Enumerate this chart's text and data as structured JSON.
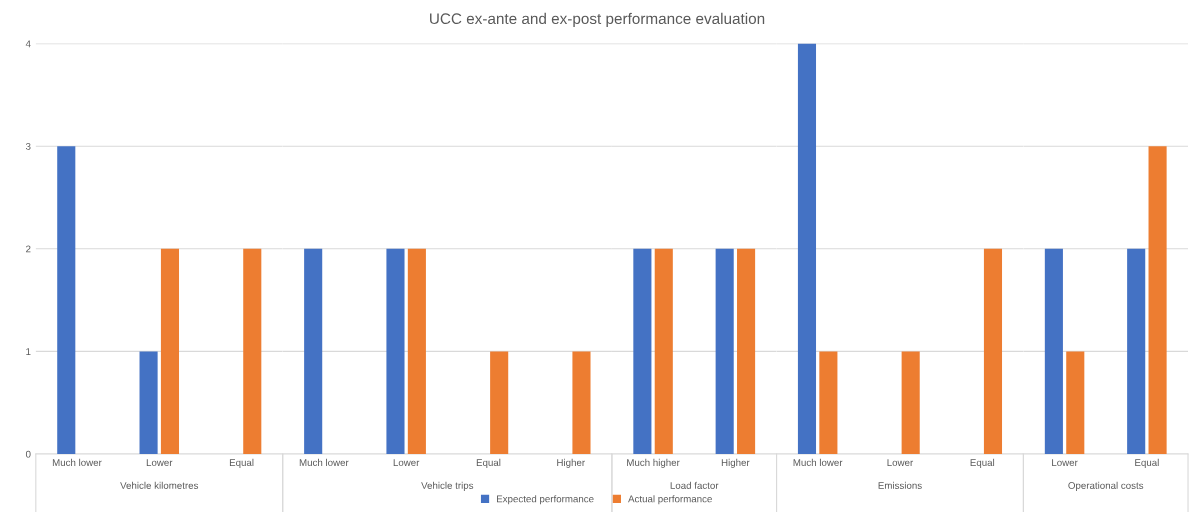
{
  "chart_data": [
    {
      "type": "bar",
      "xlabel": "Vehicle kilometres",
      "categories": [
        "Much lower",
        "Lower",
        "Equal"
      ],
      "series": [
        {
          "name": "Expected performance",
          "color": "#4472c4",
          "values": [
            3,
            1,
            0
          ]
        },
        {
          "name": "Actual performance",
          "color": "#ed7d31",
          "values": [
            0,
            2,
            2
          ]
        }
      ],
      "ylim": [
        0,
        4
      ],
      "yticks": [
        0,
        1,
        2,
        3,
        4
      ],
      "grid": "y",
      "legend": "bottom"
    },
    {
      "type": "bar",
      "title": "UCC ex-ante and ex-post performance evaluation",
      "xlabel": "Vehicle trips",
      "categories": [
        "Much lower",
        "Lower",
        "Equal",
        "Higher"
      ],
      "series": [
        {
          "color": "#4472c4",
          "values": [
            2,
            2,
            0,
            0
          ]
        },
        {
          "color": "#ed7d31",
          "values": [
            0,
            2,
            1,
            1
          ]
        }
      ],
      "ylim": [
        0,
        4
      ],
      "yticks": [
        0,
        1,
        2,
        3,
        4
      ],
      "grid": "y",
      "tick_labels": "x"
    },
    {
      "type": "bar",
      "xlabel": "Load factor",
      "categories": [
        "Much higher",
        "Higher"
      ],
      "series": [
        {
          "color": "#4472c4",
          "values": [
            2,
            2
          ]
        },
        {
          "color": "#ed7d31",
          "values": [
            2,
            2
          ]
        }
      ],
      "ylim": [
        0,
        4
      ],
      "yticks": [
        0,
        1,
        2,
        3,
        4
      ],
      "grid": "y",
      "tick_labels": "x"
    },
    {
      "type": "bar",
      "xlabel": "Emissions",
      "categories": [
        "Much lower",
        "Lower",
        "Equal"
      ],
      "series": [
        {
          "color": "#4472c4",
          "values": [
            4,
            0,
            0
          ]
        },
        {
          "color": "#ed7d31",
          "values": [
            1,
            1,
            2
          ]
        }
      ],
      "ylim": [
        0,
        4
      ],
      "yticks": [
        0,
        1,
        2,
        3,
        4
      ],
      "grid": "y",
      "tick_labels": "x"
    },
    {
      "type": "bar",
      "xlabel": "Operational costs",
      "categories": [
        "Lower",
        "Equal"
      ],
      "series": [
        {
          "color": "#4472c4",
          "values": [
            2,
            2
          ]
        },
        {
          "color": "#ed7d31",
          "values": [
            1,
            3
          ]
        }
      ],
      "ylim": [
        0,
        4
      ],
      "yticks": [
        0,
        1,
        2,
        3,
        4
      ],
      "grid": "y",
      "tick_labels": "x"
    }
  ]
}
